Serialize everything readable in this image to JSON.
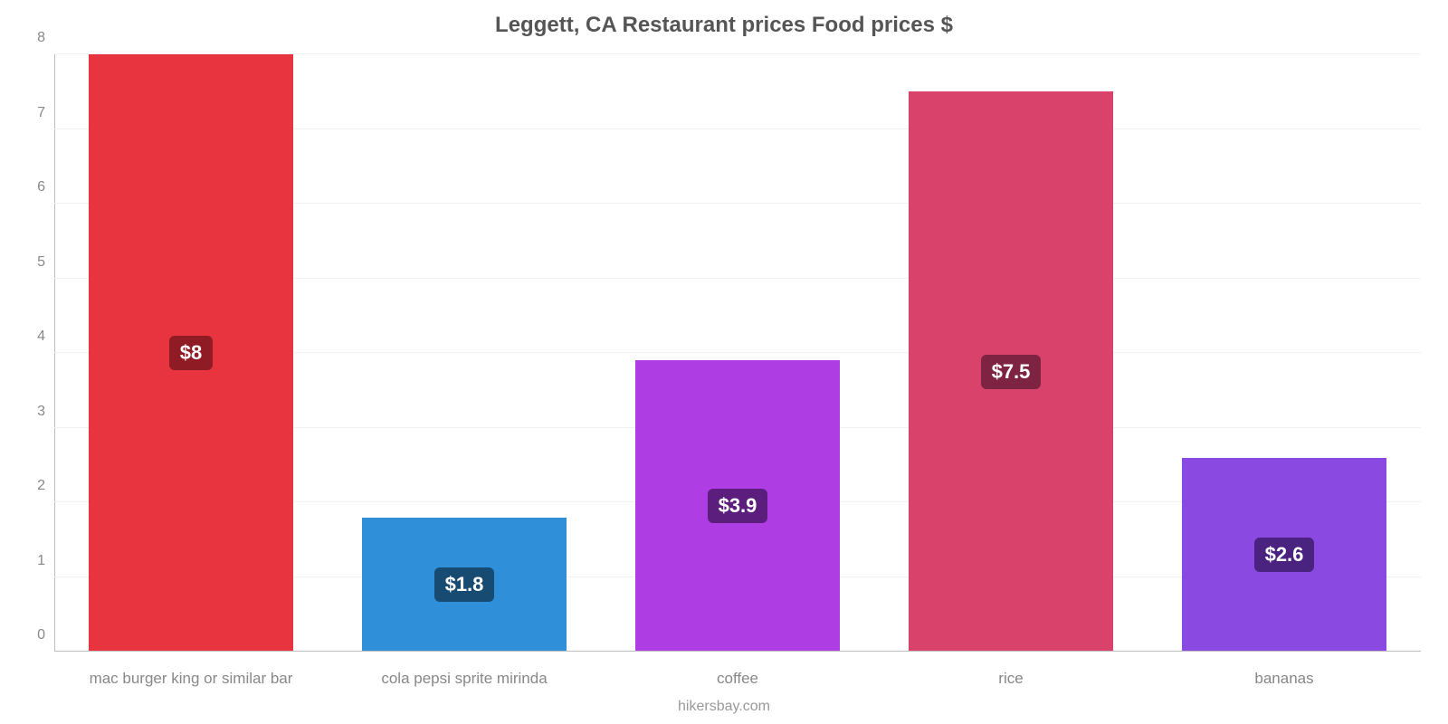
{
  "chart": {
    "type": "bar",
    "title": "Leggett, CA Restaurant prices Food prices $",
    "title_fontsize": 24,
    "title_color": "#555555",
    "footer": "hikersbay.com",
    "footer_color": "#999999",
    "footer_fontsize": 16,
    "background_color": "#ffffff",
    "grid_color": "#f2f2f2",
    "axis_color": "#bdbdbd",
    "tick_label_color": "#888888",
    "tick_label_fontsize": 16,
    "x_label_color": "#888888",
    "x_label_fontsize": 17,
    "ylim": [
      0,
      8
    ],
    "ytick_step": 1,
    "yticks": [
      0,
      1,
      2,
      3,
      4,
      5,
      6,
      7,
      8
    ],
    "bar_width_pct": 75,
    "data_label_fontsize": 22,
    "data_label_color": "#ffffff",
    "categories": [
      "mac burger king or similar bar",
      "cola pepsi sprite mirinda",
      "coffee",
      "rice",
      "bananas"
    ],
    "values": [
      8,
      1.8,
      3.9,
      7.5,
      2.6
    ],
    "value_labels": [
      "$8",
      "$1.8",
      "$3.9",
      "$7.5",
      "$2.6"
    ],
    "bar_colors": [
      "#e8343e",
      "#2f8fd8",
      "#af3de4",
      "#d9436b",
      "#8a49e0"
    ],
    "label_bg_colors": [
      "#8f1b24",
      "#174b72",
      "#5c1e7d",
      "#7e2342",
      "#4a2280"
    ]
  }
}
